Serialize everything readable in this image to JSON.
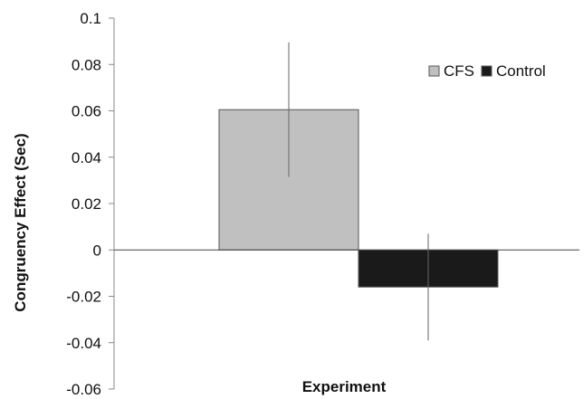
{
  "chart_data": {
    "type": "bar",
    "categories": [
      "Experiment"
    ],
    "series": [
      {
        "name": "CFS",
        "values": [
          0.0605
        ],
        "error": [
          0.029
        ],
        "color": "#c0c0c0"
      },
      {
        "name": "Control",
        "values": [
          -0.016
        ],
        "error": [
          0.023
        ],
        "color": "#1a1a1a"
      }
    ],
    "title": "",
    "xlabel": "Experiment",
    "ylabel": "Congruency Effect (Sec)",
    "ylim": [
      -0.06,
      0.1
    ],
    "yticks": [
      "0.1",
      "0.08",
      "0.06",
      "0.04",
      "0.02",
      "0",
      "-0.02",
      "-0.04",
      "-0.06"
    ],
    "legend_position": "top-right",
    "grid": false
  }
}
